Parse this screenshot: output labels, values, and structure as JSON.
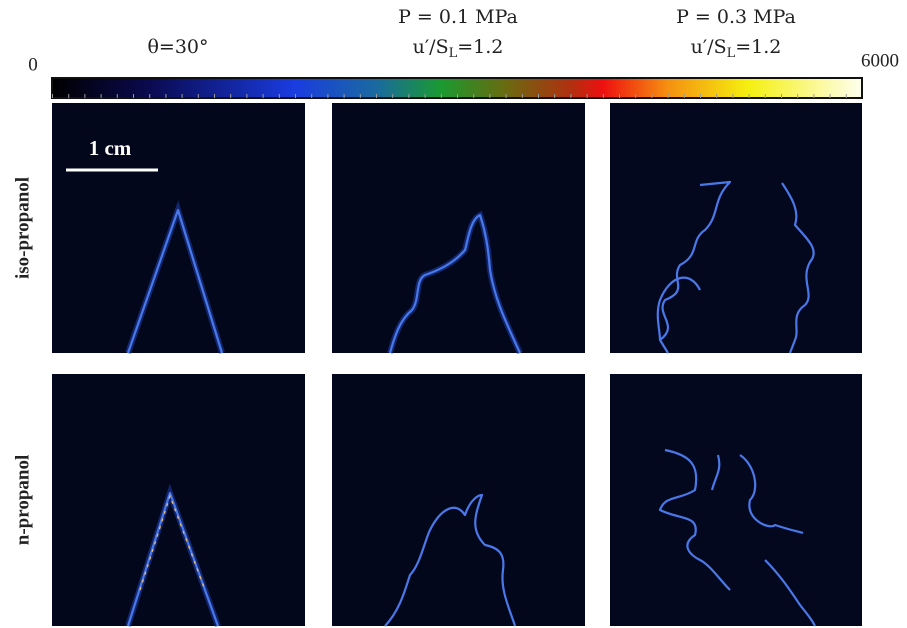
{
  "headers": [
    {
      "line1": "θ=30°"
    },
    {
      "line1": "P = 0.1 MPa",
      "line2": {
        "before": "u′/S",
        "sub": "L",
        "after": "=1.2"
      }
    },
    {
      "line1": "P = 0.3 MPa",
      "line2": {
        "before": "u′/S",
        "sub": "L",
        "after": "=1.2"
      }
    }
  ],
  "colorbar": {
    "min_label": "0",
    "max_label": "6000"
  },
  "scale_bar": "1 cm",
  "rows": [
    "iso-propanol",
    "n-propanol"
  ]
}
